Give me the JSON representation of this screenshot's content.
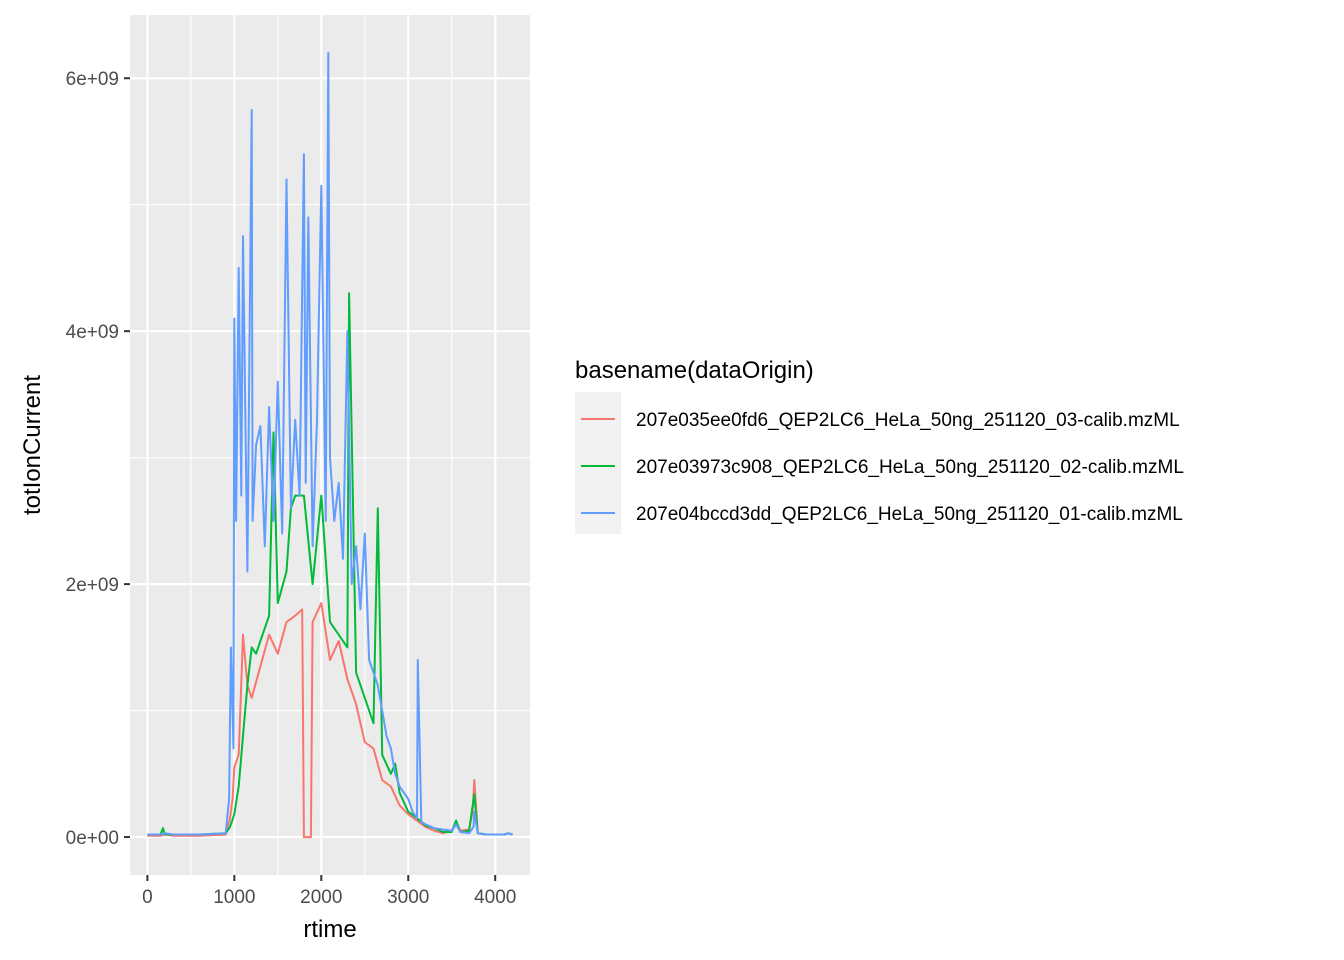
{
  "chart_data": {
    "type": "line",
    "xlabel": "rtime",
    "ylabel": "totIonCurrent",
    "xlim": [
      -200,
      4400
    ],
    "ylim": [
      -300000000,
      6500000000
    ],
    "x_ticks": [
      0,
      1000,
      2000,
      3000,
      4000
    ],
    "x_tick_labels": [
      "0",
      "1000",
      "2000",
      "3000",
      "4000"
    ],
    "y_ticks": [
      0,
      2000000000,
      4000000000,
      6000000000
    ],
    "y_tick_labels": [
      "0e+00",
      "2e+09",
      "4e+09",
      "6e+09"
    ],
    "grid": true,
    "legend": {
      "title": "basename(dataOrigin)",
      "position": "right"
    },
    "series": [
      {
        "name": "207e035ee0fd6_QEP2LC6_HeLa_50ng_251120_03-calib.mzML",
        "color": "#F8766D",
        "x": [
          0,
          150,
          200,
          300,
          600,
          900,
          950,
          980,
          1000,
          1050,
          1100,
          1150,
          1200,
          1300,
          1400,
          1500,
          1600,
          1700,
          1780,
          1800,
          1820,
          1850,
          1880,
          1900,
          2000,
          2100,
          2200,
          2300,
          2400,
          2500,
          2600,
          2700,
          2800,
          2900,
          3000,
          3100,
          3200,
          3300,
          3400,
          3500,
          3550,
          3600,
          3700,
          3740,
          3760,
          3800,
          3900,
          4000,
          4100,
          4150,
          4200
        ],
        "y": [
          10000000,
          10000000,
          20000000,
          10000000,
          10000000,
          20000000,
          150000000,
          300000000,
          550000000,
          650000000,
          1600000000,
          1200000000,
          1100000000,
          1350000000,
          1600000000,
          1450000000,
          1700000000,
          1750000000,
          1800000000,
          0,
          0,
          0,
          0,
          1700000000,
          1850000000,
          1400000000,
          1550000000,
          1250000000,
          1050000000,
          750000000,
          700000000,
          450000000,
          400000000,
          250000000,
          180000000,
          130000000,
          80000000,
          50000000,
          30000000,
          50000000,
          120000000,
          50000000,
          60000000,
          200000000,
          450000000,
          30000000,
          20000000,
          20000000,
          20000000,
          30000000,
          20000000
        ]
      },
      {
        "name": "207e03973c908_QEP2LC6_HeLa_50ng_251120_02-calib.mzML",
        "color": "#00BA38",
        "x": [
          0,
          150,
          180,
          200,
          300,
          600,
          900,
          950,
          1000,
          1050,
          1100,
          1150,
          1200,
          1250,
          1300,
          1400,
          1450,
          1500,
          1600,
          1650,
          1700,
          1800,
          1900,
          2000,
          2100,
          2200,
          2300,
          2320,
          2400,
          2500,
          2600,
          2650,
          2700,
          2800,
          2850,
          2900,
          3000,
          3100,
          3200,
          3300,
          3400,
          3500,
          3550,
          3600,
          3700,
          3760,
          3800,
          3900,
          4000,
          4100,
          4150,
          4200
        ],
        "y": [
          20000000,
          20000000,
          70000000,
          20000000,
          20000000,
          20000000,
          30000000,
          80000000,
          180000000,
          400000000,
          800000000,
          1200000000,
          1500000000,
          1450000000,
          1550000000,
          1750000000,
          3200000000,
          1850000000,
          2100000000,
          2600000000,
          2700000000,
          2700000000,
          2000000000,
          2700000000,
          1700000000,
          1600000000,
          1500000000,
          4300000000,
          1300000000,
          1100000000,
          900000000,
          2600000000,
          650000000,
          500000000,
          580000000,
          350000000,
          200000000,
          150000000,
          90000000,
          70000000,
          40000000,
          40000000,
          130000000,
          40000000,
          50000000,
          340000000,
          30000000,
          20000000,
          20000000,
          20000000,
          30000000,
          20000000
        ]
      },
      {
        "name": "207e04bccd3dd_QEP2LC6_HeLa_50ng_251120_01-calib.mzML",
        "color": "#619CFF",
        "x": [
          0,
          150,
          200,
          300,
          600,
          900,
          940,
          960,
          990,
          1000,
          1020,
          1050,
          1080,
          1100,
          1150,
          1200,
          1210,
          1250,
          1300,
          1350,
          1400,
          1450,
          1500,
          1550,
          1600,
          1650,
          1700,
          1750,
          1800,
          1820,
          1850,
          1900,
          1950,
          2000,
          2050,
          2080,
          2100,
          2150,
          2200,
          2250,
          2300,
          2350,
          2400,
          2450,
          2500,
          2550,
          2600,
          2650,
          2700,
          2750,
          2800,
          2850,
          2900,
          3000,
          3050,
          3100,
          3110,
          3150,
          3200,
          3300,
          3400,
          3500,
          3550,
          3600,
          3700,
          3750,
          3760,
          3800,
          3900,
          4000,
          4100,
          4150,
          4200
        ],
        "y": [
          20000000,
          20000000,
          30000000,
          20000000,
          20000000,
          30000000,
          300000000,
          1500000000,
          700000000,
          4100000000,
          2500000000,
          4500000000,
          2700000000,
          4750000000,
          2100000000,
          5750000000,
          2500000000,
          3100000000,
          3250000000,
          2300000000,
          3400000000,
          2500000000,
          3600000000,
          2400000000,
          5200000000,
          2600000000,
          3300000000,
          2700000000,
          5400000000,
          2800000000,
          4900000000,
          2300000000,
          3300000000,
          5150000000,
          2500000000,
          6200000000,
          3000000000,
          2500000000,
          2800000000,
          2200000000,
          4000000000,
          2000000000,
          2300000000,
          1800000000,
          2400000000,
          1400000000,
          1300000000,
          1200000000,
          1000000000,
          800000000,
          700000000,
          500000000,
          400000000,
          300000000,
          200000000,
          150000000,
          1400000000,
          120000000,
          100000000,
          70000000,
          60000000,
          50000000,
          100000000,
          40000000,
          30000000,
          80000000,
          200000000,
          30000000,
          20000000,
          20000000,
          20000000,
          30000000,
          20000000
        ]
      }
    ]
  }
}
